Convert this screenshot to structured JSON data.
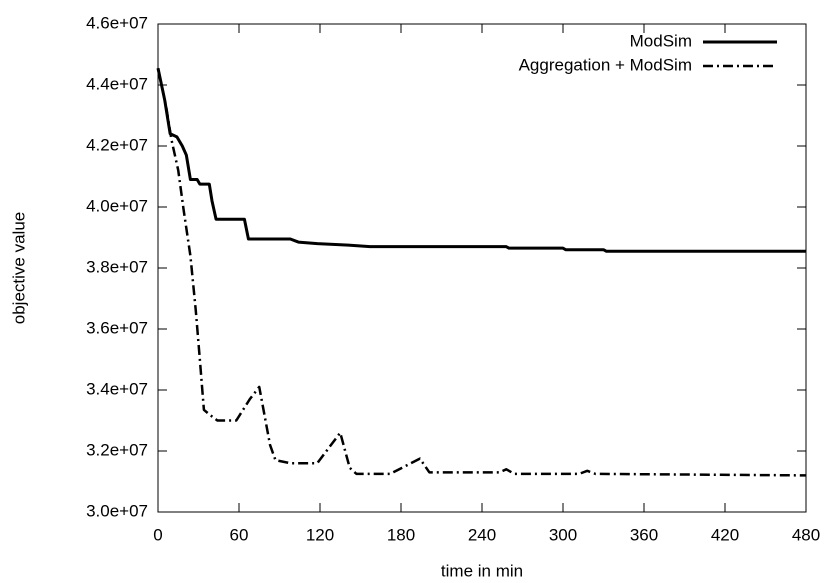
{
  "chart_data": {
    "type": "line",
    "x_label": "time in min",
    "y_label": "objective value",
    "xlim": [
      0,
      480
    ],
    "xticks": [
      0,
      60,
      120,
      180,
      240,
      300,
      360,
      420,
      480
    ],
    "ylim": [
      30000000,
      46000000
    ],
    "yticks": [
      {
        "value": 30000000,
        "label": "3.0e+07"
      },
      {
        "value": 32000000,
        "label": "3.2e+07"
      },
      {
        "value": 34000000,
        "label": "3.4e+07"
      },
      {
        "value": 36000000,
        "label": "3.6e+07"
      },
      {
        "value": 38000000,
        "label": "3.8e+07"
      },
      {
        "value": 40000000,
        "label": "4.0e+07"
      },
      {
        "value": 42000000,
        "label": "4.2e+07"
      },
      {
        "value": 44000000,
        "label": "4.4e+07"
      },
      {
        "value": 46000000,
        "label": "4.6e+07"
      }
    ],
    "legend": "upper right",
    "series": [
      {
        "name": "ModSim",
        "color": "#000000",
        "style": "solid",
        "x": [
          0,
          5,
          9,
          14,
          18,
          21,
          24,
          29,
          31,
          38,
          40,
          43,
          64,
          67,
          98,
          104,
          118,
          141,
          157,
          258,
          260,
          300,
          302,
          330,
          332,
          480
        ],
        "values": [
          44550000,
          43500000,
          42400000,
          42300000,
          42000000,
          41700000,
          40900000,
          40900000,
          40750000,
          40750000,
          40200000,
          39600000,
          39600000,
          38950000,
          38950000,
          38850000,
          38800000,
          38750000,
          38700000,
          38700000,
          38650000,
          38650000,
          38600000,
          38600000,
          38550000,
          38550000
        ]
      },
      {
        "name": "Aggregation + ModSim",
        "color": "#000000",
        "style": "dashdot",
        "x": [
          0,
          6,
          10,
          15,
          19,
          24,
          28,
          31,
          34,
          38,
          44,
          58,
          68,
          75,
          83,
          87,
          98,
          118,
          135,
          142,
          147,
          172,
          194,
          201,
          253,
          258,
          264,
          312,
          318,
          324,
          480
        ],
        "values": [
          44550000,
          43300000,
          42200000,
          41200000,
          39900000,
          38400000,
          36600000,
          35000000,
          33350000,
          33200000,
          33000000,
          33000000,
          33700000,
          34100000,
          32200000,
          31700000,
          31600000,
          31600000,
          32600000,
          31450000,
          31250000,
          31250000,
          31750000,
          31300000,
          31300000,
          31400000,
          31250000,
          31250000,
          31350000,
          31250000,
          31200000
        ]
      }
    ]
  }
}
